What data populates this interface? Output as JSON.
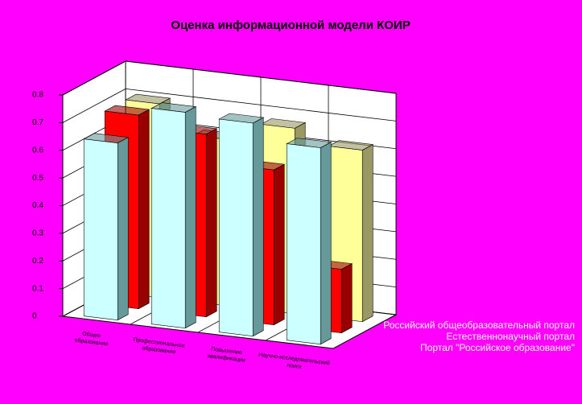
{
  "chart_data": {
    "type": "bar3d",
    "title": "Оценка информационной модели КОИР",
    "categories": [
      "Общее образование",
      "Профессиональное образование",
      "Повышение квалификации",
      "Научно-исследовательский поиск"
    ],
    "series": [
      {
        "name": "Портал \"Российское образование\"",
        "color": "#ccffff",
        "side": "#669999",
        "values": [
          0.64,
          0.78,
          0.77,
          0.71
        ]
      },
      {
        "name": "Естественнонаучный портал",
        "color": "#ff0000",
        "side": "#990000",
        "values": [
          0.7,
          0.66,
          0.56,
          0.23
        ]
      },
      {
        "name": "Российский общеобразовательный портал",
        "color": "#ffff99",
        "side": "#999966",
        "values": [
          0.7,
          0.6,
          0.67,
          0.62
        ]
      }
    ],
    "ylim": [
      0,
      0.8
    ],
    "yticks": [
      0,
      0.1,
      0.2,
      0.3,
      0.4,
      0.5,
      0.6,
      0.7,
      0.8
    ],
    "grid": true
  }
}
